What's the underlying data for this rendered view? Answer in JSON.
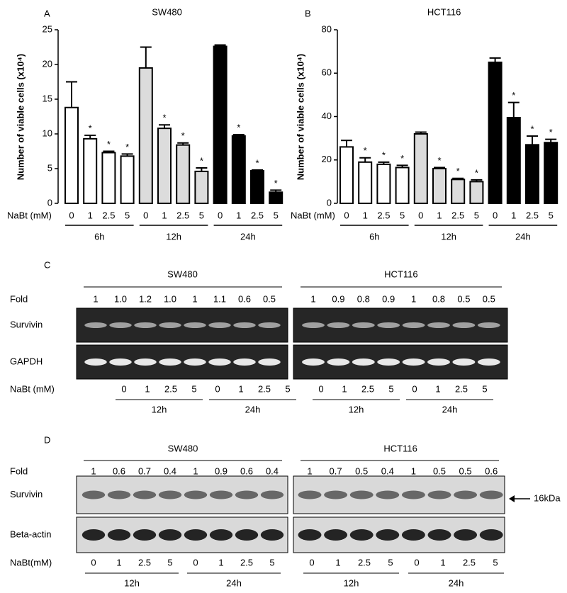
{
  "chart_data": [
    {
      "type": "bar",
      "panel": "A",
      "title": "SW480",
      "ylabel": "Number of viable cells (x10⁴)",
      "xlabel": "NaBt (mM)",
      "categories": [
        "0",
        "1",
        "2.5",
        "5"
      ],
      "ylim": [
        0,
        25
      ],
      "yticks": [
        0,
        5,
        10,
        15,
        20,
        25
      ],
      "series": [
        {
          "name": "6h",
          "color": "#ffffff",
          "values": [
            13.8,
            9.3,
            7.3,
            6.8
          ],
          "errors": [
            3.7,
            0.5,
            0.2,
            0.3
          ],
          "labels": [
            null,
            "*",
            "*",
            "*"
          ]
        },
        {
          "name": "12h",
          "color": "#dcdcdc",
          "values": [
            19.5,
            10.8,
            8.4,
            4.6
          ],
          "errors": [
            3.0,
            0.5,
            0.3,
            0.5
          ],
          "labels": [
            null,
            "*",
            "*",
            "*"
          ]
        },
        {
          "name": "24h",
          "color": "#000000",
          "values": [
            22.6,
            9.7,
            4.7,
            1.6
          ],
          "errors": [
            0.2,
            0.2,
            0.1,
            0.3
          ],
          "labels": [
            null,
            "*",
            "*",
            "*"
          ]
        }
      ]
    },
    {
      "type": "bar",
      "panel": "B",
      "title": "HCT116",
      "ylabel": "Number of viable cells (x10⁴)",
      "xlabel": "NaBt (mM)",
      "categories": [
        "0",
        "1",
        "2.5",
        "5"
      ],
      "ylim": [
        0,
        80
      ],
      "yticks": [
        0,
        20,
        40,
        60,
        80
      ],
      "series": [
        {
          "name": "6h",
          "color": "#ffffff",
          "values": [
            26,
            19,
            18,
            16.5
          ],
          "errors": [
            3,
            2,
            1,
            1
          ],
          "labels": [
            null,
            "*",
            "*",
            "*"
          ]
        },
        {
          "name": "12h",
          "color": "#dcdcdc",
          "values": [
            32,
            16,
            11,
            10
          ],
          "errors": [
            0.8,
            0.5,
            0.5,
            0.8
          ],
          "labels": [
            null,
            "*",
            "*",
            "*"
          ]
        },
        {
          "name": "24h",
          "color": "#000000",
          "values": [
            65,
            39.5,
            27,
            28
          ],
          "errors": [
            2,
            7,
            4,
            1.5
          ],
          "labels": [
            null,
            "*",
            "*",
            "*"
          ]
        }
      ]
    }
  ],
  "panel_c": {
    "label": "C",
    "fold_label": "Fold",
    "dose_label": "NaBt (mM)",
    "doses": [
      "0",
      "1",
      "2.5",
      "5"
    ],
    "times": [
      "12h",
      "24h"
    ],
    "blots": [
      "Survivin",
      "GAPDH"
    ],
    "cell_lines": [
      {
        "name": "SW480",
        "folds": [
          "1",
          "1.0",
          "1.2",
          "1.0",
          "1",
          "1.1",
          "0.6",
          "0.5"
        ]
      },
      {
        "name": "HCT116",
        "folds": [
          "1",
          "0.9",
          "0.8",
          "0.9",
          "1",
          "0.8",
          "0.5",
          "0.5"
        ]
      }
    ]
  },
  "panel_d": {
    "label": "D",
    "fold_label": "Fold",
    "dose_label": "NaBt(mM)",
    "doses": [
      "0",
      "1",
      "2.5",
      "5"
    ],
    "times": [
      "12h",
      "24h"
    ],
    "blots": [
      "Survivin",
      "Beta-actin"
    ],
    "marker": "16kDa",
    "cell_lines": [
      {
        "name": "SW480",
        "folds": [
          "1",
          "0.6",
          "0.7",
          "0.4",
          "1",
          "0.9",
          "0.6",
          "0.4"
        ]
      },
      {
        "name": "HCT116",
        "folds": [
          "1",
          "0.7",
          "0.5",
          "0.4",
          "1",
          "0.5",
          "0.5",
          "0.6"
        ]
      }
    ]
  }
}
